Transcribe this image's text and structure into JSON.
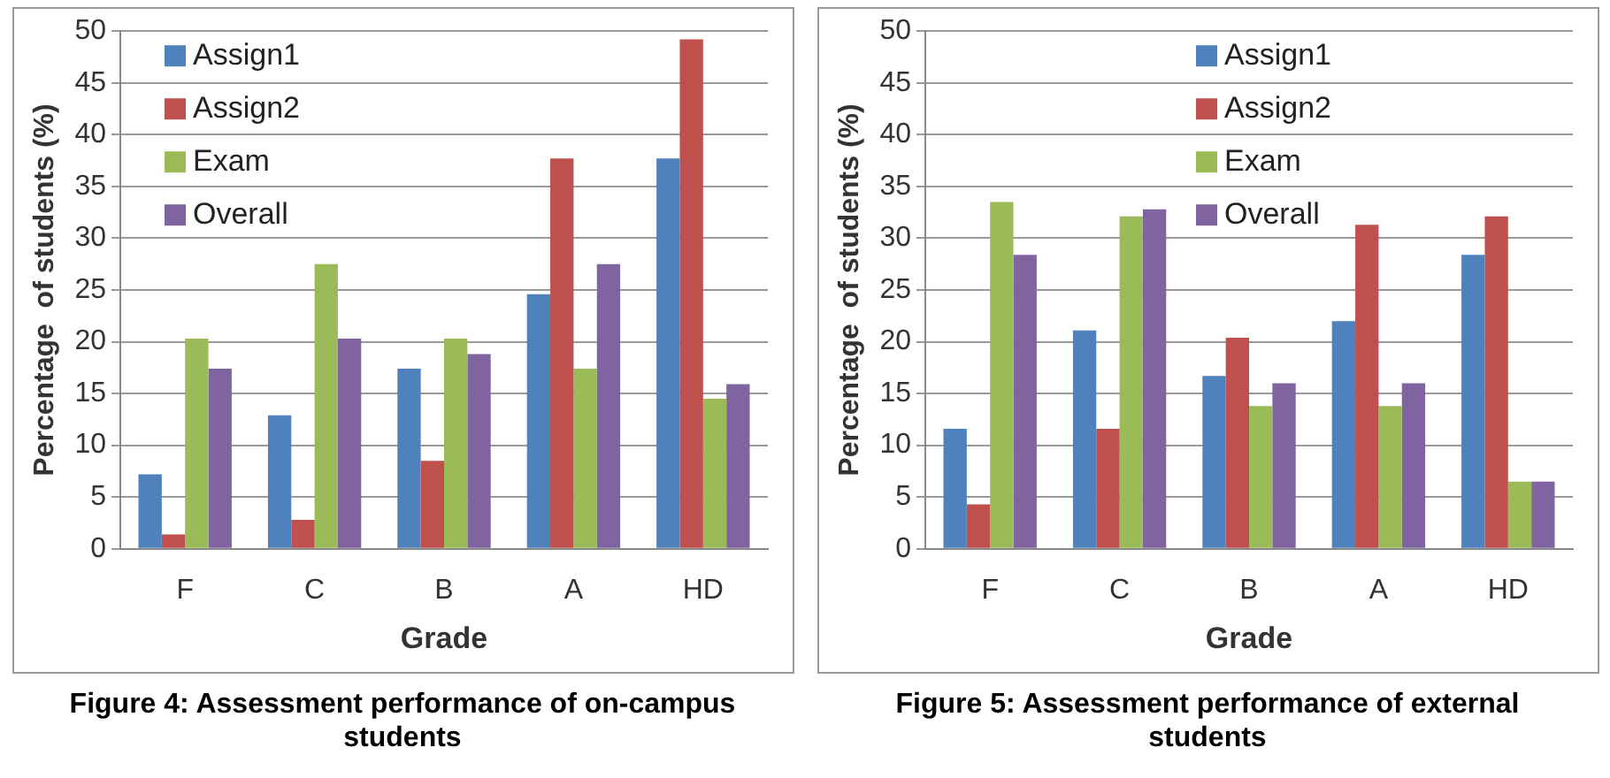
{
  "chart_data": [
    {
      "type": "bar",
      "title": "Figure 4: Assessment performance of on-campus students",
      "xlabel": "Grade",
      "ylabel": "Percentage  of students (%)",
      "categories": [
        "F",
        "C",
        "B",
        "A",
        "HD"
      ],
      "series": [
        {
          "name": "Assign1",
          "color": "#4f81bd",
          "values": [
            7.2,
            12.9,
            17.4,
            24.6,
            37.7
          ]
        },
        {
          "name": "Assign2",
          "color": "#c0504d",
          "values": [
            1.4,
            2.8,
            8.5,
            37.7,
            49.2
          ]
        },
        {
          "name": "Exam",
          "color": "#9bbb59",
          "values": [
            20.3,
            27.5,
            20.3,
            17.4,
            14.5
          ]
        },
        {
          "name": "Overall",
          "color": "#8064a2",
          "values": [
            17.4,
            20.3,
            18.8,
            27.5,
            15.9
          ]
        }
      ],
      "ylim": [
        0,
        50
      ],
      "yticks": [
        0,
        5,
        10,
        15,
        20,
        25,
        30,
        35,
        40,
        45,
        50
      ],
      "grid": "y",
      "legend": "top left"
    },
    {
      "type": "bar",
      "title": "Figure 5: Assessment performance of external students",
      "xlabel": "Grade",
      "ylabel": "Percentage  of students (%)",
      "categories": [
        "F",
        "C",
        "B",
        "A",
        "HD"
      ],
      "series": [
        {
          "name": "Assign1",
          "color": "#4f81bd",
          "values": [
            11.6,
            21.1,
            16.7,
            22.0,
            28.4
          ]
        },
        {
          "name": "Assign2",
          "color": "#c0504d",
          "values": [
            4.3,
            11.6,
            20.4,
            31.3,
            32.1
          ]
        },
        {
          "name": "Exam",
          "color": "#9bbb59",
          "values": [
            33.5,
            32.1,
            13.8,
            13.8,
            6.5
          ]
        },
        {
          "name": "Overall",
          "color": "#8064a2",
          "values": [
            28.4,
            32.8,
            16.0,
            16.0,
            6.5
          ]
        }
      ],
      "ylim": [
        0,
        50
      ],
      "yticks": [
        0,
        5,
        10,
        15,
        20,
        25,
        30,
        35,
        40,
        45,
        50
      ],
      "grid": "y",
      "legend": "top"
    }
  ]
}
